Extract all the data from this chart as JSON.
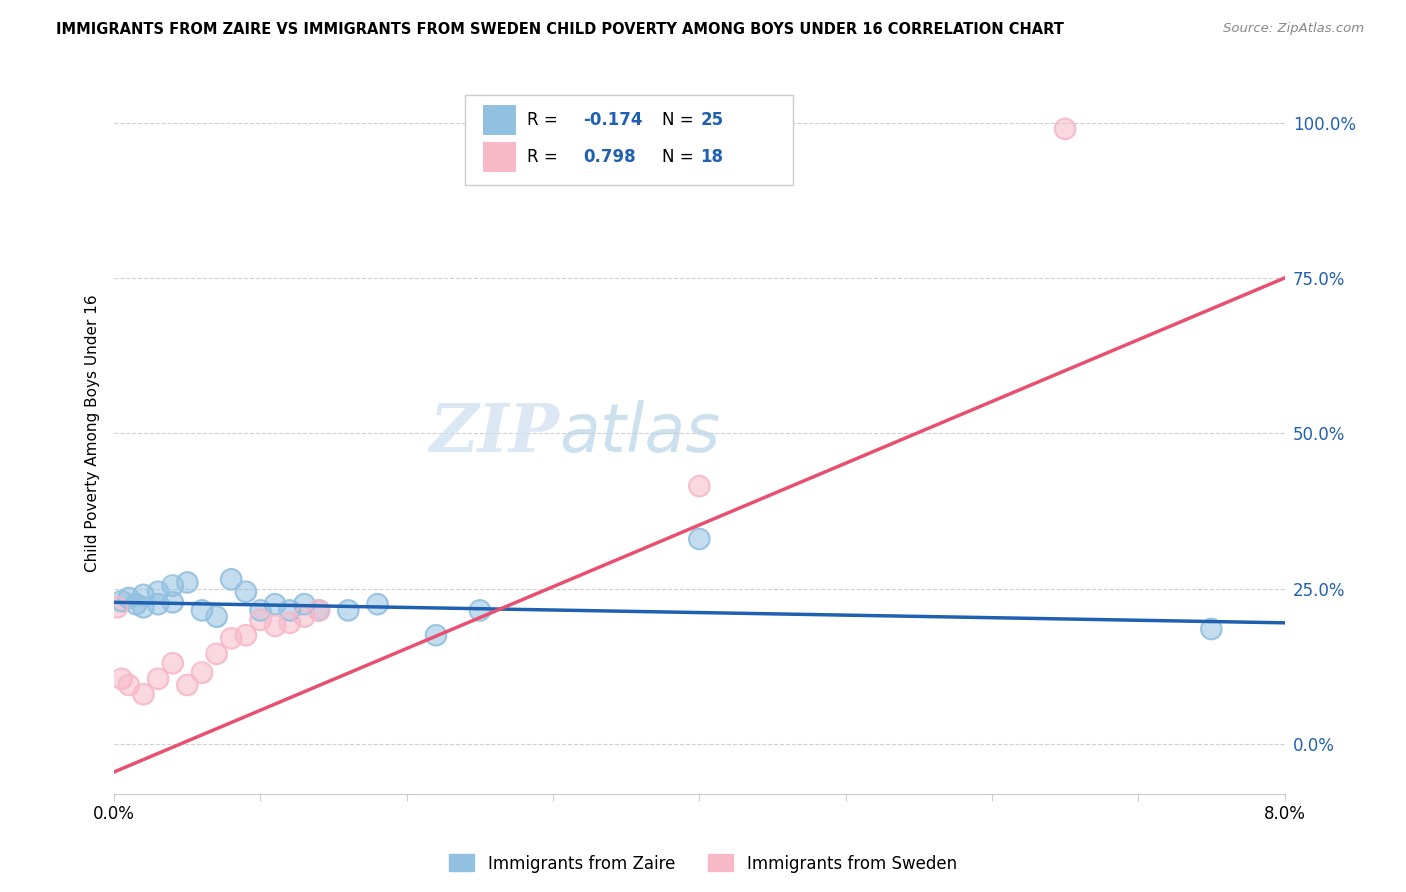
{
  "title": "IMMIGRANTS FROM ZAIRE VS IMMIGRANTS FROM SWEDEN CHILD POVERTY AMONG BOYS UNDER 16 CORRELATION CHART",
  "source": "Source: ZipAtlas.com",
  "ylabel": "Child Poverty Among Boys Under 16",
  "ytick_labels": [
    "0.0%",
    "25.0%",
    "50.0%",
    "75.0%",
    "100.0%"
  ],
  "ytick_values": [
    0.0,
    0.25,
    0.5,
    0.75,
    1.0
  ],
  "footer_label1": "Immigrants from Zaire",
  "footer_label2": "Immigrants from Sweden",
  "zaire_color": "#92c0e0",
  "sweden_color": "#f7b8c8",
  "zaire_line_color": "#2060b0",
  "sweden_line_color": "#e85070",
  "background_color": "#ffffff",
  "watermark_zip": "ZIP",
  "watermark_atlas": "atlas",
  "zaire_x": [
    0.0005,
    0.001,
    0.0015,
    0.002,
    0.002,
    0.003,
    0.003,
    0.004,
    0.004,
    0.005,
    0.006,
    0.007,
    0.008,
    0.009,
    0.01,
    0.011,
    0.012,
    0.013,
    0.014,
    0.016,
    0.018,
    0.022,
    0.025,
    0.04,
    0.075
  ],
  "zaire_y": [
    0.23,
    0.235,
    0.225,
    0.24,
    0.22,
    0.245,
    0.225,
    0.255,
    0.228,
    0.26,
    0.215,
    0.205,
    0.265,
    0.245,
    0.215,
    0.225,
    0.215,
    0.225,
    0.215,
    0.215,
    0.225,
    0.175,
    0.215,
    0.33,
    0.185
  ],
  "sweden_x": [
    0.0002,
    0.001,
    0.002,
    0.003,
    0.004,
    0.005,
    0.006,
    0.007,
    0.008,
    0.009,
    0.01,
    0.011,
    0.012,
    0.013,
    0.014,
    0.04,
    0.065,
    0.0005
  ],
  "sweden_y": [
    0.22,
    0.095,
    0.08,
    0.105,
    0.13,
    0.095,
    0.115,
    0.145,
    0.17,
    0.175,
    0.2,
    0.19,
    0.195,
    0.205,
    0.215,
    0.415,
    0.99,
    0.105
  ],
  "zaire_line_x0": 0.0,
  "zaire_line_y0": 0.228,
  "zaire_line_x1": 0.08,
  "zaire_line_y1": 0.195,
  "sweden_line_x0": 0.0,
  "sweden_line_y0": -0.045,
  "sweden_line_x1": 0.08,
  "sweden_line_y1": 0.75,
  "xlim": [
    0.0,
    0.08
  ],
  "ylim": [
    -0.08,
    1.08
  ],
  "figsize": [
    14.06,
    8.92
  ],
  "dpi": 100
}
